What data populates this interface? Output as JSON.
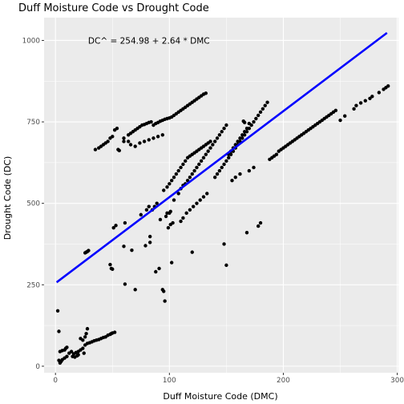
{
  "chart_data": {
    "type": "scatter",
    "title": "Duff Moisture Code vs Drought Code",
    "xlabel": "Duff Moisture Code (DMC)",
    "ylabel": "Drought Code (DC)",
    "xlim": [
      -10,
      301
    ],
    "ylim": [
      -20,
      1070
    ],
    "x_ticks": [
      0,
      100,
      200,
      300
    ],
    "y_ticks": [
      0,
      250,
      500,
      750,
      1000
    ],
    "x_tick_labels": [
      "0",
      "100",
      "200",
      "300"
    ],
    "y_tick_labels": [
      "0",
      "250",
      "500",
      "750",
      "1000"
    ],
    "grid": true,
    "background_color": "#ebebeb",
    "grid_color": "#ffffff",
    "point_color": "#000000",
    "line_color": "#0000ff",
    "annotation": {
      "text": "DC^  =  254.98  +  2.64 * DMC",
      "x": 82,
      "y": 1000
    },
    "regression_line": {
      "intercept": 254.98,
      "slope": 2.64,
      "x_range": [
        1,
        291
      ]
    },
    "series": [
      {
        "points": [
          [
            2,
            170
          ],
          [
            3,
            107
          ],
          [
            3,
            18
          ],
          [
            4,
            10
          ],
          [
            5,
            15
          ],
          [
            4,
            45
          ],
          [
            6,
            48
          ],
          [
            8,
            50
          ],
          [
            9,
            55
          ],
          [
            10,
            58
          ],
          [
            6,
            20
          ],
          [
            8,
            25
          ],
          [
            10,
            30
          ],
          [
            12,
            40
          ],
          [
            14,
            45
          ],
          [
            16,
            38
          ],
          [
            18,
            42
          ],
          [
            15,
            30
          ],
          [
            17,
            28
          ],
          [
            19,
            32
          ],
          [
            20,
            35
          ],
          [
            22,
            50
          ],
          [
            24,
            55
          ],
          [
            22,
            85
          ],
          [
            24,
            80
          ],
          [
            26,
            90
          ],
          [
            27,
            100
          ],
          [
            28,
            115
          ],
          [
            26,
            65
          ],
          [
            28,
            70
          ],
          [
            30,
            72
          ],
          [
            32,
            75
          ],
          [
            34,
            78
          ],
          [
            36,
            80
          ],
          [
            38,
            82
          ],
          [
            40,
            85
          ],
          [
            42,
            88
          ],
          [
            44,
            90
          ],
          [
            46,
            95
          ],
          [
            48,
            98
          ],
          [
            49,
            100
          ],
          [
            50,
            102
          ],
          [
            52,
            104
          ],
          [
            20,
            45
          ],
          [
            25,
            40
          ],
          [
            26,
            348
          ],
          [
            27,
            350
          ],
          [
            28,
            352
          ],
          [
            29,
            355
          ],
          [
            48,
            312
          ],
          [
            49,
            300
          ],
          [
            50,
            298
          ],
          [
            51,
            425
          ],
          [
            53,
            432
          ],
          [
            55,
            665
          ],
          [
            56,
            662
          ],
          [
            61,
            252
          ],
          [
            60,
            368
          ],
          [
            61,
            440
          ],
          [
            67,
            356
          ],
          [
            70,
            235
          ],
          [
            75,
            465
          ],
          [
            79,
            370
          ],
          [
            80,
            480
          ],
          [
            82,
            490
          ],
          [
            83,
            380
          ],
          [
            83,
            398
          ],
          [
            85,
            480
          ],
          [
            87,
            490
          ],
          [
            88,
            290
          ],
          [
            89,
            500
          ],
          [
            91,
            300
          ],
          [
            92,
            450
          ],
          [
            94,
            235
          ],
          [
            95,
            230
          ],
          [
            96,
            200
          ],
          [
            97,
            460
          ],
          [
            98,
            470
          ],
          [
            99,
            425
          ],
          [
            100,
            470
          ],
          [
            101,
            475
          ],
          [
            101,
            435
          ],
          [
            102,
            318
          ],
          [
            103,
            440
          ],
          [
            104,
            510
          ],
          [
            108,
            530
          ],
          [
            110,
            545
          ],
          [
            112,
            555
          ],
          [
            114,
            560
          ],
          [
            116,
            570
          ],
          [
            118,
            580
          ],
          [
            120,
            590
          ],
          [
            122,
            600
          ],
          [
            124,
            610
          ],
          [
            126,
            620
          ],
          [
            128,
            630
          ],
          [
            130,
            640
          ],
          [
            132,
            650
          ],
          [
            134,
            660
          ],
          [
            136,
            670
          ],
          [
            138,
            680
          ],
          [
            140,
            690
          ],
          [
            142,
            700
          ],
          [
            144,
            710
          ],
          [
            146,
            720
          ],
          [
            148,
            730
          ],
          [
            150,
            740
          ],
          [
            152,
            650
          ],
          [
            154,
            660
          ],
          [
            156,
            670
          ],
          [
            158,
            680
          ],
          [
            160,
            690
          ],
          [
            162,
            700
          ],
          [
            164,
            710
          ],
          [
            166,
            720
          ],
          [
            168,
            730
          ],
          [
            170,
            745
          ],
          [
            165,
            752
          ],
          [
            166,
            748
          ],
          [
            95,
            540
          ],
          [
            98,
            550
          ],
          [
            100,
            560
          ],
          [
            102,
            570
          ],
          [
            104,
            580
          ],
          [
            106,
            590
          ],
          [
            108,
            600
          ],
          [
            110,
            610
          ],
          [
            112,
            620
          ],
          [
            114,
            630
          ],
          [
            116,
            640
          ],
          [
            118,
            645
          ],
          [
            120,
            650
          ],
          [
            122,
            655
          ],
          [
            124,
            660
          ],
          [
            126,
            665
          ],
          [
            128,
            670
          ],
          [
            130,
            675
          ],
          [
            132,
            680
          ],
          [
            134,
            685
          ],
          [
            136,
            690
          ],
          [
            35,
            665
          ],
          [
            38,
            670
          ],
          [
            40,
            675
          ],
          [
            42,
            680
          ],
          [
            44,
            685
          ],
          [
            46,
            690
          ],
          [
            48,
            700
          ],
          [
            50,
            705
          ],
          [
            52,
            725
          ],
          [
            54,
            730
          ],
          [
            60,
            700
          ],
          [
            64,
            710
          ],
          [
            66,
            715
          ],
          [
            68,
            720
          ],
          [
            70,
            725
          ],
          [
            72,
            730
          ],
          [
            74,
            735
          ],
          [
            76,
            740
          ],
          [
            78,
            742
          ],
          [
            80,
            745
          ],
          [
            82,
            748
          ],
          [
            84,
            750
          ],
          [
            86,
            740
          ],
          [
            88,
            745
          ],
          [
            90,
            748
          ],
          [
            92,
            752
          ],
          [
            94,
            755
          ],
          [
            96,
            758
          ],
          [
            98,
            760
          ],
          [
            100,
            762
          ],
          [
            102,
            765
          ],
          [
            104,
            770
          ],
          [
            106,
            775
          ],
          [
            108,
            780
          ],
          [
            110,
            785
          ],
          [
            112,
            790
          ],
          [
            114,
            795
          ],
          [
            116,
            800
          ],
          [
            118,
            805
          ],
          [
            120,
            810
          ],
          [
            122,
            815
          ],
          [
            124,
            820
          ],
          [
            126,
            825
          ],
          [
            128,
            830
          ],
          [
            130,
            835
          ],
          [
            132,
            838
          ],
          [
            60,
            690
          ],
          [
            64,
            690
          ],
          [
            66,
            680
          ],
          [
            70,
            675
          ],
          [
            74,
            685
          ],
          [
            78,
            690
          ],
          [
            82,
            695
          ],
          [
            86,
            700
          ],
          [
            90,
            705
          ],
          [
            94,
            710
          ],
          [
            140,
            580
          ],
          [
            142,
            590
          ],
          [
            144,
            600
          ],
          [
            146,
            610
          ],
          [
            148,
            620
          ],
          [
            150,
            630
          ],
          [
            152,
            640
          ],
          [
            154,
            650
          ],
          [
            156,
            660
          ],
          [
            158,
            670
          ],
          [
            160,
            680
          ],
          [
            162,
            690
          ],
          [
            164,
            700
          ],
          [
            166,
            710
          ],
          [
            168,
            720
          ],
          [
            170,
            730
          ],
          [
            172,
            740
          ],
          [
            174,
            750
          ],
          [
            176,
            760
          ],
          [
            178,
            770
          ],
          [
            180,
            780
          ],
          [
            182,
            790
          ],
          [
            184,
            800
          ],
          [
            186,
            810
          ],
          [
            188,
            635
          ],
          [
            190,
            640
          ],
          [
            192,
            645
          ],
          [
            194,
            650
          ],
          [
            196,
            660
          ],
          [
            198,
            665
          ],
          [
            200,
            670
          ],
          [
            202,
            675
          ],
          [
            204,
            680
          ],
          [
            206,
            685
          ],
          [
            208,
            690
          ],
          [
            210,
            695
          ],
          [
            212,
            700
          ],
          [
            214,
            705
          ],
          [
            216,
            710
          ],
          [
            218,
            715
          ],
          [
            220,
            720
          ],
          [
            222,
            725
          ],
          [
            224,
            730
          ],
          [
            226,
            735
          ],
          [
            228,
            740
          ],
          [
            230,
            745
          ],
          [
            232,
            750
          ],
          [
            234,
            755
          ],
          [
            236,
            760
          ],
          [
            238,
            765
          ],
          [
            240,
            770
          ],
          [
            242,
            775
          ],
          [
            244,
            780
          ],
          [
            246,
            785
          ],
          [
            250,
            755
          ],
          [
            254,
            768
          ],
          [
            262,
            790
          ],
          [
            264,
            800
          ],
          [
            268,
            808
          ],
          [
            272,
            815
          ],
          [
            276,
            822
          ],
          [
            278,
            828
          ],
          [
            284,
            840
          ],
          [
            288,
            850
          ],
          [
            290,
            855
          ],
          [
            292,
            860
          ],
          [
            148,
            375
          ],
          [
            150,
            310
          ],
          [
            155,
            570
          ],
          [
            158,
            580
          ],
          [
            162,
            590
          ],
          [
            168,
            410
          ],
          [
            170,
            600
          ],
          [
            174,
            610
          ],
          [
            178,
            430
          ],
          [
            180,
            440
          ],
          [
            120,
            350
          ],
          [
            110,
            445
          ],
          [
            112,
            455
          ],
          [
            115,
            470
          ],
          [
            118,
            480
          ],
          [
            121,
            490
          ],
          [
            124,
            500
          ],
          [
            127,
            510
          ],
          [
            130,
            520
          ],
          [
            133,
            530
          ]
        ]
      }
    ]
  }
}
